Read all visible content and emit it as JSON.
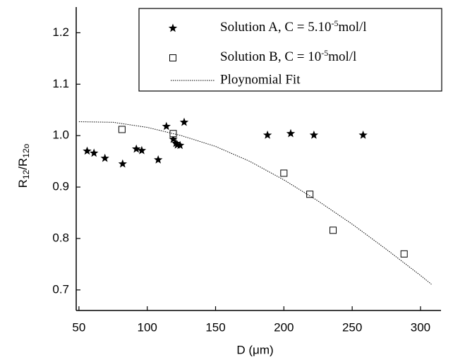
{
  "chart_data": {
    "type": "scatter",
    "xlabel": "D (μm)",
    "ylabel": [
      "R",
      "12",
      "/R",
      "12o"
    ],
    "xlim": [
      48,
      315
    ],
    "ylim": [
      0.66,
      1.25
    ],
    "xticks": [
      50,
      100,
      150,
      200,
      250,
      300
    ],
    "yticks": [
      0.7,
      0.8,
      0.9,
      1.0,
      1.1,
      1.2
    ],
    "legend": "upper right",
    "series": [
      {
        "name": "Solution A, C = 5.10-5mol/l",
        "marker": "star",
        "color": "#000000",
        "x": [
          56,
          61,
          69,
          82,
          92,
          96,
          108,
          114,
          119,
          121,
          122,
          124,
          127,
          188,
          205,
          222,
          258
        ],
        "values": [
          0.97,
          0.966,
          0.956,
          0.945,
          0.974,
          0.971,
          0.953,
          1.018,
          0.993,
          0.985,
          0.982,
          0.981,
          1.026,
          1.001,
          1.004,
          1.001,
          1.001
        ]
      },
      {
        "name": "Solution B, C = 10-5mol/l",
        "marker": "square",
        "color": "#000000",
        "x": [
          81.5,
          119,
          200,
          219,
          236,
          288
        ],
        "values": [
          1.012,
          1.004,
          0.927,
          0.886,
          0.816,
          0.77
        ]
      },
      {
        "name": "Ploynomial Fit",
        "marker": "dotted-line",
        "color": "#000000",
        "x": [
          50,
          75,
          100,
          125,
          150,
          175,
          200,
          225,
          250,
          275,
          300,
          308
        ],
        "values": [
          1.027,
          1.026,
          1.016,
          1.0,
          0.979,
          0.95,
          0.914,
          0.873,
          0.828,
          0.779,
          0.728,
          0.711
        ]
      }
    ]
  }
}
